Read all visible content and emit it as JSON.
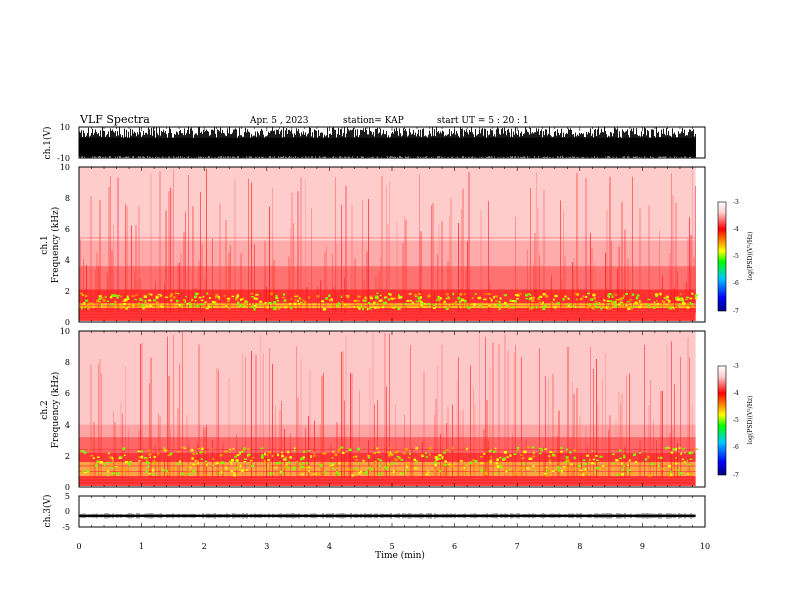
{
  "header": {
    "title": "VLF Spectra",
    "date": "Apr. 5  , 2023",
    "station": "station= KAP",
    "start": "start  UT  =   5  : 20 : 1"
  },
  "chart_data": [
    {
      "type": "line",
      "panel": "ch1-waveform",
      "ylabel": "ch.1(V)",
      "ylim": [
        -10,
        10
      ],
      "yticks": [
        "10",
        "-10"
      ],
      "xlim": [
        0,
        10
      ],
      "note_series_extent_min": 9.85
    },
    {
      "type": "heatmap",
      "panel": "ch1-spectrogram",
      "ylabel_top": "ch.1",
      "ylabel": "Frequency  (kHz)",
      "ylim": [
        0,
        10
      ],
      "yticks": [
        "0",
        "2",
        "4",
        "6",
        "8",
        "10"
      ],
      "xlim": [
        0,
        10
      ],
      "data_extent_min": 9.85,
      "colorbar": {
        "label": "log(PSD)(V²/Hz)",
        "range": [
          -7,
          -3
        ],
        "ticks": [
          "-3",
          "-4",
          "-5",
          "-6",
          "-7"
        ],
        "colors": [
          "#000080",
          "#0000ff",
          "#00c8ff",
          "#00ff00",
          "#ffff00",
          "#ff8000",
          "#ff0000",
          "#ffcccc",
          "#ffffff"
        ]
      }
    },
    {
      "type": "heatmap",
      "panel": "ch2-spectrogram",
      "ylabel_top": "ch.2",
      "ylabel": "Frequency  (kHz)",
      "ylim": [
        0,
        10
      ],
      "yticks": [
        "0",
        "2",
        "4",
        "6",
        "8",
        "10"
      ],
      "xlim": [
        0,
        10
      ],
      "data_extent_min": 9.85,
      "colorbar": {
        "label": "log(PSD)(V²/Hz)",
        "range": [
          -7,
          -3
        ],
        "ticks": [
          "-3",
          "-4",
          "-5",
          "-6",
          "-7"
        ],
        "colors": [
          "#000080",
          "#0000ff",
          "#00c8ff",
          "#00ff00",
          "#ffff00",
          "#ff8000",
          "#ff0000",
          "#ffcccc",
          "#ffffff"
        ]
      }
    },
    {
      "type": "line",
      "panel": "ch3-waveform",
      "ylabel": "ch.3(V)",
      "ylim": [
        -5,
        5
      ],
      "yticks": [
        "5",
        "0",
        "-5"
      ],
      "xlim": [
        0,
        10
      ],
      "level_v": -1.4,
      "xlabel": "Time  (min)",
      "xticks": [
        "0",
        "1",
        "2",
        "3",
        "4",
        "5",
        "6",
        "7",
        "8",
        "9",
        "10"
      ]
    }
  ]
}
